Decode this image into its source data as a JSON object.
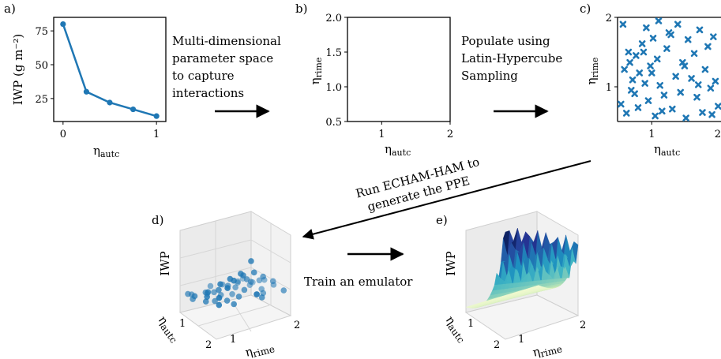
{
  "panels": {
    "a": {
      "label": "a)",
      "ylabel": "IWP (g m⁻²)",
      "xlabel": "η",
      "xlabel_sub": "autc",
      "xticks": [
        "0",
        "1"
      ],
      "yticks": [
        "25",
        "50",
        "75"
      ]
    },
    "b": {
      "label": "b)",
      "ylabel": "η",
      "ylabel_sub": "rime",
      "xlabel": "η",
      "xlabel_sub": "autc",
      "xticks": [
        "1",
        "2"
      ],
      "yticks": [
        "0.5",
        "1.0",
        "1.5",
        "2.0"
      ]
    },
    "c": {
      "label": "c)",
      "ylabel": "η",
      "ylabel_sub": "rime",
      "xlabel": "η",
      "xlabel_sub": "autc",
      "xticks": [
        "1",
        "2"
      ],
      "yticks": [
        "1",
        "2"
      ]
    },
    "d": {
      "label": "d)",
      "zlabel": "IWP",
      "xaxis": "η",
      "xaxis_sub": "autc",
      "yaxis": "η",
      "yaxis_sub": "rime",
      "ticks_autc": [
        "1",
        "2"
      ],
      "ticks_rime": [
        "1",
        "2"
      ]
    },
    "e": {
      "label": "e)",
      "zlabel": "IWP",
      "xaxis": "η",
      "xaxis_sub": "autc",
      "yaxis": "η",
      "yaxis_sub": "rime",
      "ticks_autc": [
        "1",
        "2"
      ],
      "ticks_rime": [
        "1",
        "2"
      ]
    }
  },
  "steps": {
    "s1": [
      "Multi-dimensional",
      "parameter space",
      "to capture",
      "interactions"
    ],
    "s2": [
      "Populate using",
      "Latin-Hypercube",
      "Sampling"
    ],
    "s3": [
      "Run ECHAM-HAM to",
      "generate the PPE"
    ],
    "s4": "Train an emulator"
  },
  "colors": {
    "line": "#1f77b4",
    "marker": "#1f77b4",
    "arrow": "#000000"
  },
  "chart_data": [
    {
      "type": "line",
      "title": "",
      "xlabel": "η_autc",
      "ylabel": "IWP (g m⁻²)",
      "x": [
        0,
        0.25,
        0.5,
        0.75,
        1.0
      ],
      "y": [
        80,
        30,
        22,
        17,
        12
      ],
      "xlim": [
        -0.1,
        1.1
      ],
      "ylim": [
        8,
        85
      ]
    },
    {
      "type": "scatter",
      "title": "",
      "xlabel": "η_autc",
      "ylabel": "η_rime",
      "x": [],
      "y": [],
      "xlim": [
        0.5,
        2.0
      ],
      "ylim": [
        0.5,
        2.0
      ]
    },
    {
      "type": "scatter",
      "title": "",
      "xlabel": "η_autc",
      "ylabel": "η_rime",
      "xlim": [
        0.5,
        2.0
      ],
      "ylim": [
        0.5,
        2.0
      ],
      "x": [
        0.55,
        0.6,
        0.63,
        0.66,
        0.7,
        0.72,
        0.77,
        0.8,
        0.82,
        0.86,
        0.9,
        0.92,
        0.95,
        0.98,
        1.02,
        1.05,
        1.08,
        1.1,
        1.12,
        1.18,
        1.22,
        1.25,
        1.3,
        1.35,
        1.38,
        1.42,
        1.45,
        1.5,
        1.53,
        1.58,
        1.62,
        1.66,
        1.7,
        1.74,
        1.78,
        1.82,
        1.86,
        1.9,
        1.93,
        1.97,
        0.58,
        0.68,
        0.75,
        0.88,
        1.0,
        1.15,
        1.28,
        1.48,
        1.68,
        1.88
      ],
      "y": [
        0.75,
        1.25,
        0.62,
        1.5,
        0.95,
        1.1,
        1.45,
        0.7,
        1.2,
        1.62,
        1.05,
        1.85,
        0.8,
        1.3,
        1.7,
        0.58,
        1.4,
        1.95,
        1.02,
        0.88,
        1.55,
        1.78,
        0.68,
        1.15,
        1.9,
        0.92,
        1.35,
        0.55,
        1.68,
        1.12,
        1.48,
        0.85,
        1.82,
        0.63,
        1.25,
        1.58,
        0.98,
        1.72,
        1.08,
        0.72,
        1.9,
        1.35,
        0.9,
        1.5,
        1.2,
        0.65,
        1.75,
        1.3,
        1.03,
        0.6
      ]
    }
  ]
}
